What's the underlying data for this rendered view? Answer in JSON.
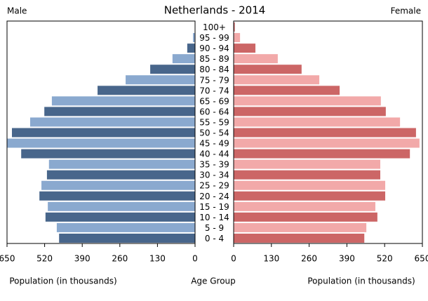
{
  "chart_data": {
    "type": "population-pyramid",
    "title": "Netherlands - 2014",
    "left_label": "Male",
    "right_label": "Female",
    "x_label_left": "Population (in thousands)",
    "x_label_center": "Age Group",
    "x_label_right": "Population (in thousands)",
    "categories": [
      "100+",
      "95 - 99",
      "90 - 94",
      "85 - 89",
      "80 - 84",
      "75 - 79",
      "70 - 74",
      "65 - 69",
      "60 - 64",
      "55 - 59",
      "50 - 54",
      "45 - 49",
      "40 - 44",
      "35 - 39",
      "30 - 34",
      "25 - 29",
      "20 - 24",
      "15 - 19",
      "10 - 14",
      "5 - 9",
      "0 - 4"
    ],
    "series": [
      {
        "name": "Male",
        "color": "#48668b",
        "alt_color": "#8aa9cf",
        "values": [
          1,
          7,
          27,
          78,
          155,
          240,
          337,
          495,
          521,
          570,
          633,
          650,
          601,
          505,
          512,
          531,
          538,
          509,
          517,
          478,
          470
        ]
      },
      {
        "name": "Female",
        "color": "#cc6666",
        "alt_color": "#f2a9a9",
        "values": [
          4,
          22,
          75,
          152,
          234,
          295,
          365,
          507,
          524,
          573,
          628,
          640,
          607,
          505,
          505,
          522,
          522,
          488,
          495,
          457,
          450
        ]
      }
    ],
    "xlim": [
      0,
      650
    ],
    "xticks": [
      0,
      130,
      260,
      390,
      520,
      650
    ]
  }
}
